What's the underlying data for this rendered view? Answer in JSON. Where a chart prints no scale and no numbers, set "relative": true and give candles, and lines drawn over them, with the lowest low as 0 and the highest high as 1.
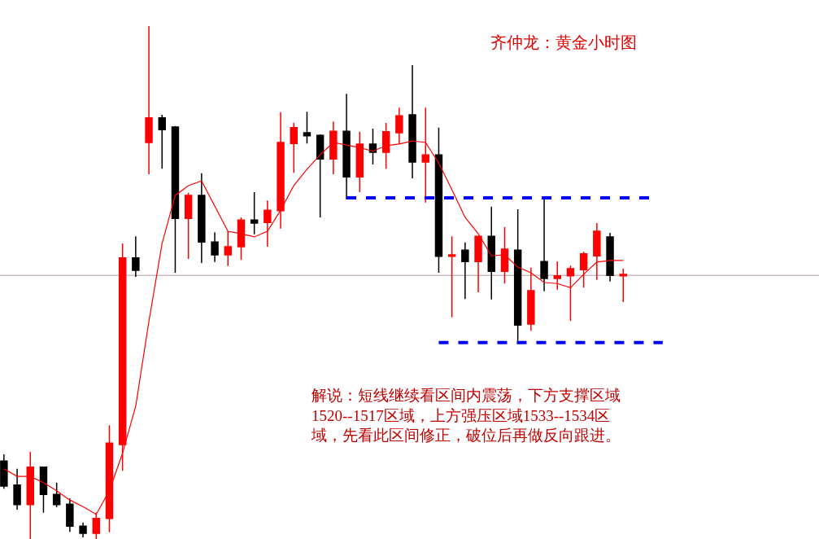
{
  "chart_data": {
    "type": "candlestick",
    "relative": true,
    "title": "齐仲龙：黄金小时图",
    "categories": [
      null,
      null,
      null,
      null,
      null,
      null,
      null,
      null,
      null,
      null,
      null,
      null,
      null,
      null,
      null,
      null,
      null,
      null,
      null,
      null,
      null,
      null,
      null,
      null,
      null,
      null,
      null,
      null,
      null,
      null,
      null,
      null,
      null,
      null,
      null,
      null,
      null,
      null,
      null,
      null,
      null,
      null,
      null,
      null,
      null,
      null,
      null,
      null,
      null,
      null,
      null
    ],
    "ohlc": [
      [
        0.152,
        0.165,
        0.098,
        0.103
      ],
      [
        0.105,
        0.137,
        0.057,
        0.067
      ],
      [
        0.067,
        0.17,
        0,
        0.14
      ],
      [
        0.14,
        0.141,
        0.051,
        0.087
      ],
      [
        0.087,
        0.11,
        0.062,
        0.067
      ],
      [
        0.068,
        0.079,
        0.014,
        0.025
      ],
      [
        0.025,
        0.032,
        0.003,
        0.011
      ],
      [
        0.011,
        0.051,
        0,
        0.04
      ],
      [
        0.04,
        0.222,
        0.013,
        0.187
      ],
      [
        0.184,
        0.576,
        0.133,
        0.548
      ],
      [
        0.548,
        0.59,
        0.511,
        0.524
      ],
      [
        0.773,
        1,
        0.711,
        0.821
      ],
      [
        0.821,
        0.827,
        0.722,
        0.798
      ],
      [
        0.803,
        0.805,
        0.519,
        0.625
      ],
      [
        0.625,
        0.675,
        0.546,
        0.67
      ],
      [
        0.67,
        0.713,
        0.538,
        0.579
      ],
      [
        0.579,
        0.598,
        0.54,
        0.554
      ],
      [
        0.554,
        0.6,
        0.532,
        0.57
      ],
      [
        0.57,
        0.627,
        0.544,
        0.622
      ],
      [
        0.622,
        0.676,
        0.594,
        0.616
      ],
      [
        0.617,
        0.66,
        0.57,
        0.641
      ],
      [
        0.64,
        0.832,
        0.605,
        0.773
      ],
      [
        0.771,
        0.811,
        0.714,
        0.802
      ],
      [
        0.792,
        0.833,
        0.771,
        0.786
      ],
      [
        0.787,
        0.789,
        0.627,
        0.741
      ],
      [
        0.741,
        0.814,
        0.711,
        0.795
      ],
      [
        0.795,
        0.868,
        0.662,
        0.706
      ],
      [
        0.706,
        0.794,
        0.676,
        0.77
      ],
      [
        0.77,
        0.8,
        0.73,
        0.754
      ],
      [
        0.754,
        0.811,
        0.722,
        0.794
      ],
      [
        0.792,
        0.841,
        0.77,
        0.825
      ],
      [
        0.827,
        0.924,
        0.703,
        0.735
      ],
      [
        0.735,
        0.841,
        0.656,
        0.749
      ],
      [
        0.749,
        0.802,
        0.519,
        0.551
      ],
      [
        0.551,
        0.59,
        0.432,
        0.554
      ],
      [
        0.563,
        0.578,
        0.468,
        0.541
      ],
      [
        0.541,
        0.59,
        0.481,
        0.59
      ],
      [
        0.59,
        0.648,
        0.467,
        0.522
      ],
      [
        0.522,
        0.608,
        0.498,
        0.565
      ],
      [
        0.563,
        0.643,
        0.386,
        0.417
      ],
      [
        0.419,
        0.529,
        0.406,
        0.484
      ],
      [
        0.541,
        0.662,
        0.483,
        0.508
      ],
      [
        0.508,
        0.541,
        0.486,
        0.513
      ],
      [
        0.513,
        0.533,
        0.425,
        0.527
      ],
      [
        0.525,
        0.56,
        0.49,
        0.556
      ],
      [
        0.552,
        0.616,
        0.505,
        0.6
      ],
      [
        0.589,
        0.597,
        0.502,
        0.514
      ],
      [
        0.513,
        0.527,
        0.462,
        0.516
      ],
      null,
      null,
      null
    ],
    "colors": [
      "#000000",
      "#000000",
      "#ff0000",
      "#000000",
      "#000000",
      "#000000",
      "#000000",
      "#ff0000",
      "#ff0000",
      "#ff0000",
      "#000000",
      "#ff0000",
      "#000000",
      "#000000",
      "#ff0000",
      "#000000",
      "#000000",
      "#ff0000",
      "#ff0000",
      "#000000",
      "#ff0000",
      "#ff0000",
      "#ff0000",
      "#000000",
      "#000000",
      "#ff0000",
      "#000000",
      "#ff0000",
      "#000000",
      "#ff0000",
      "#ff0000",
      "#000000",
      "#ff0000",
      "#000000",
      "#ff0000",
      "#000000",
      "#ff0000",
      "#000000",
      "#ff0000",
      "#000000",
      "#ff0000",
      "#000000",
      "#ff0000",
      "#ff0000",
      "#ff0000",
      "#ff0000",
      "#000000",
      "#ff0000",
      null,
      null,
      null
    ],
    "series": [
      {
        "type": "line",
        "color": "#ff0000",
        "line_style": "solid",
        "values": [
          0.137,
          0.122,
          0.122,
          0.11,
          0.094,
          0.076,
          0.063,
          0.048,
          0.094,
          0.167,
          0.259,
          0.424,
          0.576,
          0.67,
          0.689,
          0.698,
          0.649,
          0.6,
          0.595,
          0.589,
          0.6,
          0.641,
          0.689,
          0.721,
          0.749,
          0.773,
          0.768,
          0.763,
          0.756,
          0.767,
          0.77,
          0.776,
          0.773,
          0.733,
          0.681,
          0.627,
          0.595,
          0.552,
          0.554,
          0.53,
          0.519,
          0.5,
          0.498,
          0.49,
          0.516,
          0.54,
          0.543,
          0.543,
          null,
          null,
          null
        ]
      },
      {
        "type": "line",
        "color": "#0000ff",
        "line_style": "dashed",
        "values": [
          null,
          null,
          null,
          null,
          null,
          null,
          null,
          null,
          null,
          null,
          null,
          null,
          null,
          null,
          null,
          null,
          null,
          null,
          null,
          null,
          null,
          null,
          null,
          null,
          null,
          null,
          0.665,
          0.665,
          0.665,
          0.665,
          0.665,
          0.665,
          0.665,
          0.665,
          0.665,
          0.665,
          0.665,
          0.665,
          0.665,
          0.665,
          0.665,
          0.665,
          0.665,
          0.665,
          0.665,
          0.665,
          0.665,
          0.665,
          0.665,
          0.665,
          null
        ]
      },
      {
        "type": "line",
        "color": "#0000ff",
        "line_style": "dashed",
        "values": [
          null,
          null,
          null,
          null,
          null,
          null,
          null,
          null,
          null,
          null,
          null,
          null,
          null,
          null,
          null,
          null,
          null,
          null,
          null,
          null,
          null,
          null,
          null,
          null,
          null,
          null,
          null,
          null,
          null,
          null,
          null,
          null,
          null,
          0.383,
          0.383,
          0.383,
          0.383,
          0.383,
          0.383,
          0.383,
          0.383,
          0.383,
          0.383,
          0.383,
          0.383,
          0.383,
          0.383,
          0.383,
          0.383,
          0.383,
          0.383
        ]
      }
    ],
    "ref_lines": [
      {
        "axis": "y",
        "value": 0.514,
        "color": "#b89aa4"
      }
    ],
    "annotations": [
      "解说：短线继续看区间内震荡，下方支撑区域1520--1517区域，上方强压区域1533--1534区域，先看此区间修正，破位后再做反向跟进。"
    ],
    "grid": false,
    "tick_labels": false
  }
}
